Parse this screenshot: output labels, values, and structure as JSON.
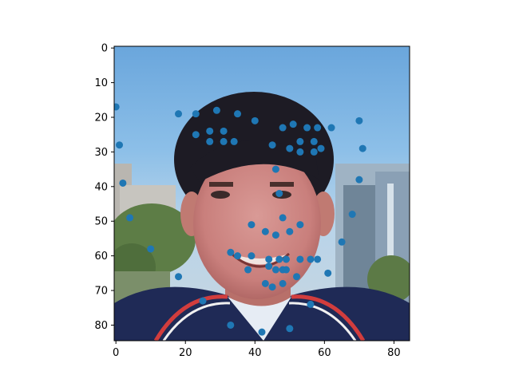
{
  "chart_data": {
    "type": "scatter",
    "title": "",
    "xlabel": "",
    "ylabel": "",
    "xlim": [
      -0.5,
      84.5
    ],
    "ylim": [
      84.5,
      -0.5
    ],
    "y_inverted": true,
    "grid": false,
    "background": "pixelated low-resolution photograph of a smiling young man with dark hair, wearing a dark jacket with red and white stripes, in front of blue sky, trees and buildings",
    "xticks": [
      0,
      20,
      40,
      60,
      80
    ],
    "yticks": [
      0,
      10,
      20,
      30,
      40,
      50,
      60,
      70,
      80
    ],
    "marker_color": "#1f77b4",
    "points": [
      {
        "x": 0,
        "y": 17
      },
      {
        "x": 1,
        "y": 28
      },
      {
        "x": 2,
        "y": 39
      },
      {
        "x": 4,
        "y": 49
      },
      {
        "x": 10,
        "y": 58
      },
      {
        "x": 18,
        "y": 66
      },
      {
        "x": 25,
        "y": 73
      },
      {
        "x": 33,
        "y": 80
      },
      {
        "x": 42,
        "y": 82
      },
      {
        "x": 50,
        "y": 81
      },
      {
        "x": 56,
        "y": 74
      },
      {
        "x": 61,
        "y": 65
      },
      {
        "x": 65,
        "y": 56
      },
      {
        "x": 68,
        "y": 48
      },
      {
        "x": 70,
        "y": 38
      },
      {
        "x": 71,
        "y": 29
      },
      {
        "x": 70,
        "y": 21
      },
      {
        "x": 18,
        "y": 19
      },
      {
        "x": 23,
        "y": 19
      },
      {
        "x": 29,
        "y": 18
      },
      {
        "x": 35,
        "y": 19
      },
      {
        "x": 40,
        "y": 21
      },
      {
        "x": 51,
        "y": 22
      },
      {
        "x": 55,
        "y": 23
      },
      {
        "x": 58,
        "y": 23
      },
      {
        "x": 62,
        "y": 23
      },
      {
        "x": 23,
        "y": 25
      },
      {
        "x": 27,
        "y": 24
      },
      {
        "x": 31,
        "y": 24
      },
      {
        "x": 27,
        "y": 27
      },
      {
        "x": 31,
        "y": 27
      },
      {
        "x": 34,
        "y": 27
      },
      {
        "x": 48,
        "y": 23
      },
      {
        "x": 53,
        "y": 27
      },
      {
        "x": 57,
        "y": 27
      },
      {
        "x": 45,
        "y": 28
      },
      {
        "x": 50,
        "y": 29
      },
      {
        "x": 53,
        "y": 30
      },
      {
        "x": 57,
        "y": 30
      },
      {
        "x": 59,
        "y": 29
      },
      {
        "x": 46,
        "y": 35
      },
      {
        "x": 47,
        "y": 42
      },
      {
        "x": 48,
        "y": 49
      },
      {
        "x": 39,
        "y": 51
      },
      {
        "x": 43,
        "y": 53
      },
      {
        "x": 46,
        "y": 54
      },
      {
        "x": 50,
        "y": 53
      },
      {
        "x": 53,
        "y": 51
      },
      {
        "x": 33,
        "y": 59
      },
      {
        "x": 35,
        "y": 60
      },
      {
        "x": 39,
        "y": 60
      },
      {
        "x": 44,
        "y": 61
      },
      {
        "x": 47,
        "y": 61
      },
      {
        "x": 49,
        "y": 61
      },
      {
        "x": 53,
        "y": 61
      },
      {
        "x": 56,
        "y": 61
      },
      {
        "x": 58,
        "y": 61
      },
      {
        "x": 38,
        "y": 64
      },
      {
        "x": 44,
        "y": 63
      },
      {
        "x": 46,
        "y": 64
      },
      {
        "x": 48,
        "y": 64
      },
      {
        "x": 49,
        "y": 64
      },
      {
        "x": 52,
        "y": 66
      },
      {
        "x": 43,
        "y": 68
      },
      {
        "x": 45,
        "y": 69
      },
      {
        "x": 48,
        "y": 68
      }
    ]
  }
}
